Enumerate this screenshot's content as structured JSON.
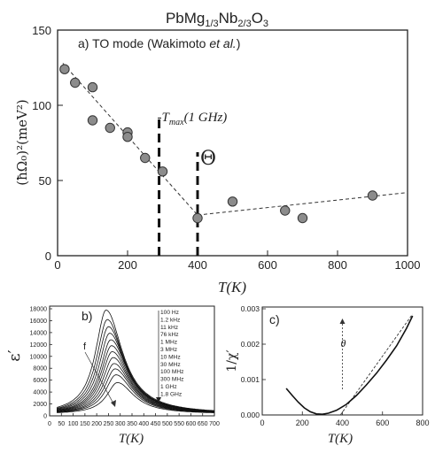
{
  "figure_title": {
    "base": "PbMg",
    "sub1": "1/3",
    "mid": "Nb",
    "sub2": "2/3",
    "tail": "O",
    "sub3": "3"
  },
  "chart_data": [
    {
      "id": "a",
      "type": "scatter",
      "panel_label": "a) TO mode (Wakimoto",
      "panel_label_italic": " et al.",
      "panel_label_end": ")",
      "ylabel": "(ħΩ₀)²(meV²)",
      "xlabel": "T(K)",
      "xlim": [
        0,
        1000
      ],
      "ylim": [
        0,
        150
      ],
      "xticks": [
        0,
        200,
        400,
        600,
        800,
        1000
      ],
      "yticks": [
        0,
        50,
        100,
        150
      ],
      "points": [
        {
          "x": 20,
          "y": 124
        },
        {
          "x": 50,
          "y": 115
        },
        {
          "x": 100,
          "y": 112
        },
        {
          "x": 100,
          "y": 90
        },
        {
          "x": 150,
          "y": 85
        },
        {
          "x": 200,
          "y": 82
        },
        {
          "x": 200,
          "y": 79
        },
        {
          "x": 250,
          "y": 65
        },
        {
          "x": 300,
          "y": 56
        },
        {
          "x": 400,
          "y": 25
        },
        {
          "x": 500,
          "y": 36
        },
        {
          "x": 650,
          "y": 30
        },
        {
          "x": 700,
          "y": 25
        },
        {
          "x": 900,
          "y": 40
        }
      ],
      "fit_lines": [
        {
          "x": [
            15,
            400
          ],
          "y": [
            128,
            27
          ]
        },
        {
          "x": [
            400,
            1000
          ],
          "y": [
            27,
            42
          ]
        }
      ],
      "markers": [
        {
          "x": 290,
          "label": "T",
          "label_sub": "max",
          "label_tail": "(1 GHz)"
        },
        {
          "x": 400,
          "label": "Θ"
        }
      ]
    },
    {
      "id": "b",
      "type": "line",
      "panel_label": "b)",
      "ylabel": "ε′",
      "xlabel": "T(K)",
      "xlim": [
        0,
        700
      ],
      "ylim": [
        0,
        18000
      ],
      "xticks": [
        0,
        50,
        100,
        150,
        200,
        250,
        300,
        350,
        400,
        450,
        500,
        550,
        600,
        650,
        700
      ],
      "yticks": [
        0,
        2000,
        4000,
        6000,
        8000,
        10000,
        12000,
        14000,
        16000,
        18000
      ],
      "legend": [
        "100 Hz",
        "1.2 kHz",
        "11 kHz",
        "76 kHz",
        "1 MHz",
        "3 MHz",
        "10 MHz",
        "30 MHz",
        "100 MHz",
        "300 MHz",
        "1 GHz",
        "1.8 GHz"
      ],
      "arrow_label": "f",
      "series": [
        {
          "peak_x": 240,
          "peak_y": 17800
        },
        {
          "peak_x": 245,
          "peak_y": 16200
        },
        {
          "peak_x": 250,
          "peak_y": 15000
        },
        {
          "peak_x": 255,
          "peak_y": 13900
        },
        {
          "peak_x": 260,
          "peak_y": 12800
        },
        {
          "peak_x": 263,
          "peak_y": 11800
        },
        {
          "peak_x": 266,
          "peak_y": 10800
        },
        {
          "peak_x": 270,
          "peak_y": 9800
        },
        {
          "peak_x": 274,
          "peak_y": 8800
        },
        {
          "peak_x": 278,
          "peak_y": 7900
        },
        {
          "peak_x": 282,
          "peak_y": 6900
        },
        {
          "peak_x": 288,
          "peak_y": 5600
        }
      ]
    },
    {
      "id": "c",
      "type": "line",
      "panel_label": "c)",
      "ylabel": "1/χ′",
      "xlabel": "T(K)",
      "xlim": [
        0,
        800
      ],
      "ylim": [
        0,
        0.003
      ],
      "xticks": [
        0,
        200,
        400,
        600,
        800
      ],
      "yticks": [
        0.0,
        0.001,
        0.002,
        0.003
      ],
      "ytick_labels": [
        "0.000",
        "0.001",
        "0.002",
        "0.003"
      ],
      "marker": {
        "x": 400,
        "label": "θ"
      },
      "curve": [
        {
          "x": 120,
          "y": 0.00075
        },
        {
          "x": 150,
          "y": 0.00055
        },
        {
          "x": 180,
          "y": 0.00036
        },
        {
          "x": 210,
          "y": 0.0002
        },
        {
          "x": 240,
          "y": 9e-05
        },
        {
          "x": 270,
          "y": 3e-05
        },
        {
          "x": 300,
          "y": 2e-05
        },
        {
          "x": 330,
          "y": 5e-05
        },
        {
          "x": 370,
          "y": 0.00013
        },
        {
          "x": 420,
          "y": 0.0003
        },
        {
          "x": 470,
          "y": 0.00055
        },
        {
          "x": 520,
          "y": 0.00085
        },
        {
          "x": 570,
          "y": 0.00118
        },
        {
          "x": 620,
          "y": 0.00155
        },
        {
          "x": 670,
          "y": 0.00195
        },
        {
          "x": 720,
          "y": 0.00245
        },
        {
          "x": 750,
          "y": 0.0028
        }
      ],
      "fit_line": {
        "x": [
          390,
          750
        ],
        "y": [
          0.0,
          0.00285
        ]
      }
    }
  ]
}
